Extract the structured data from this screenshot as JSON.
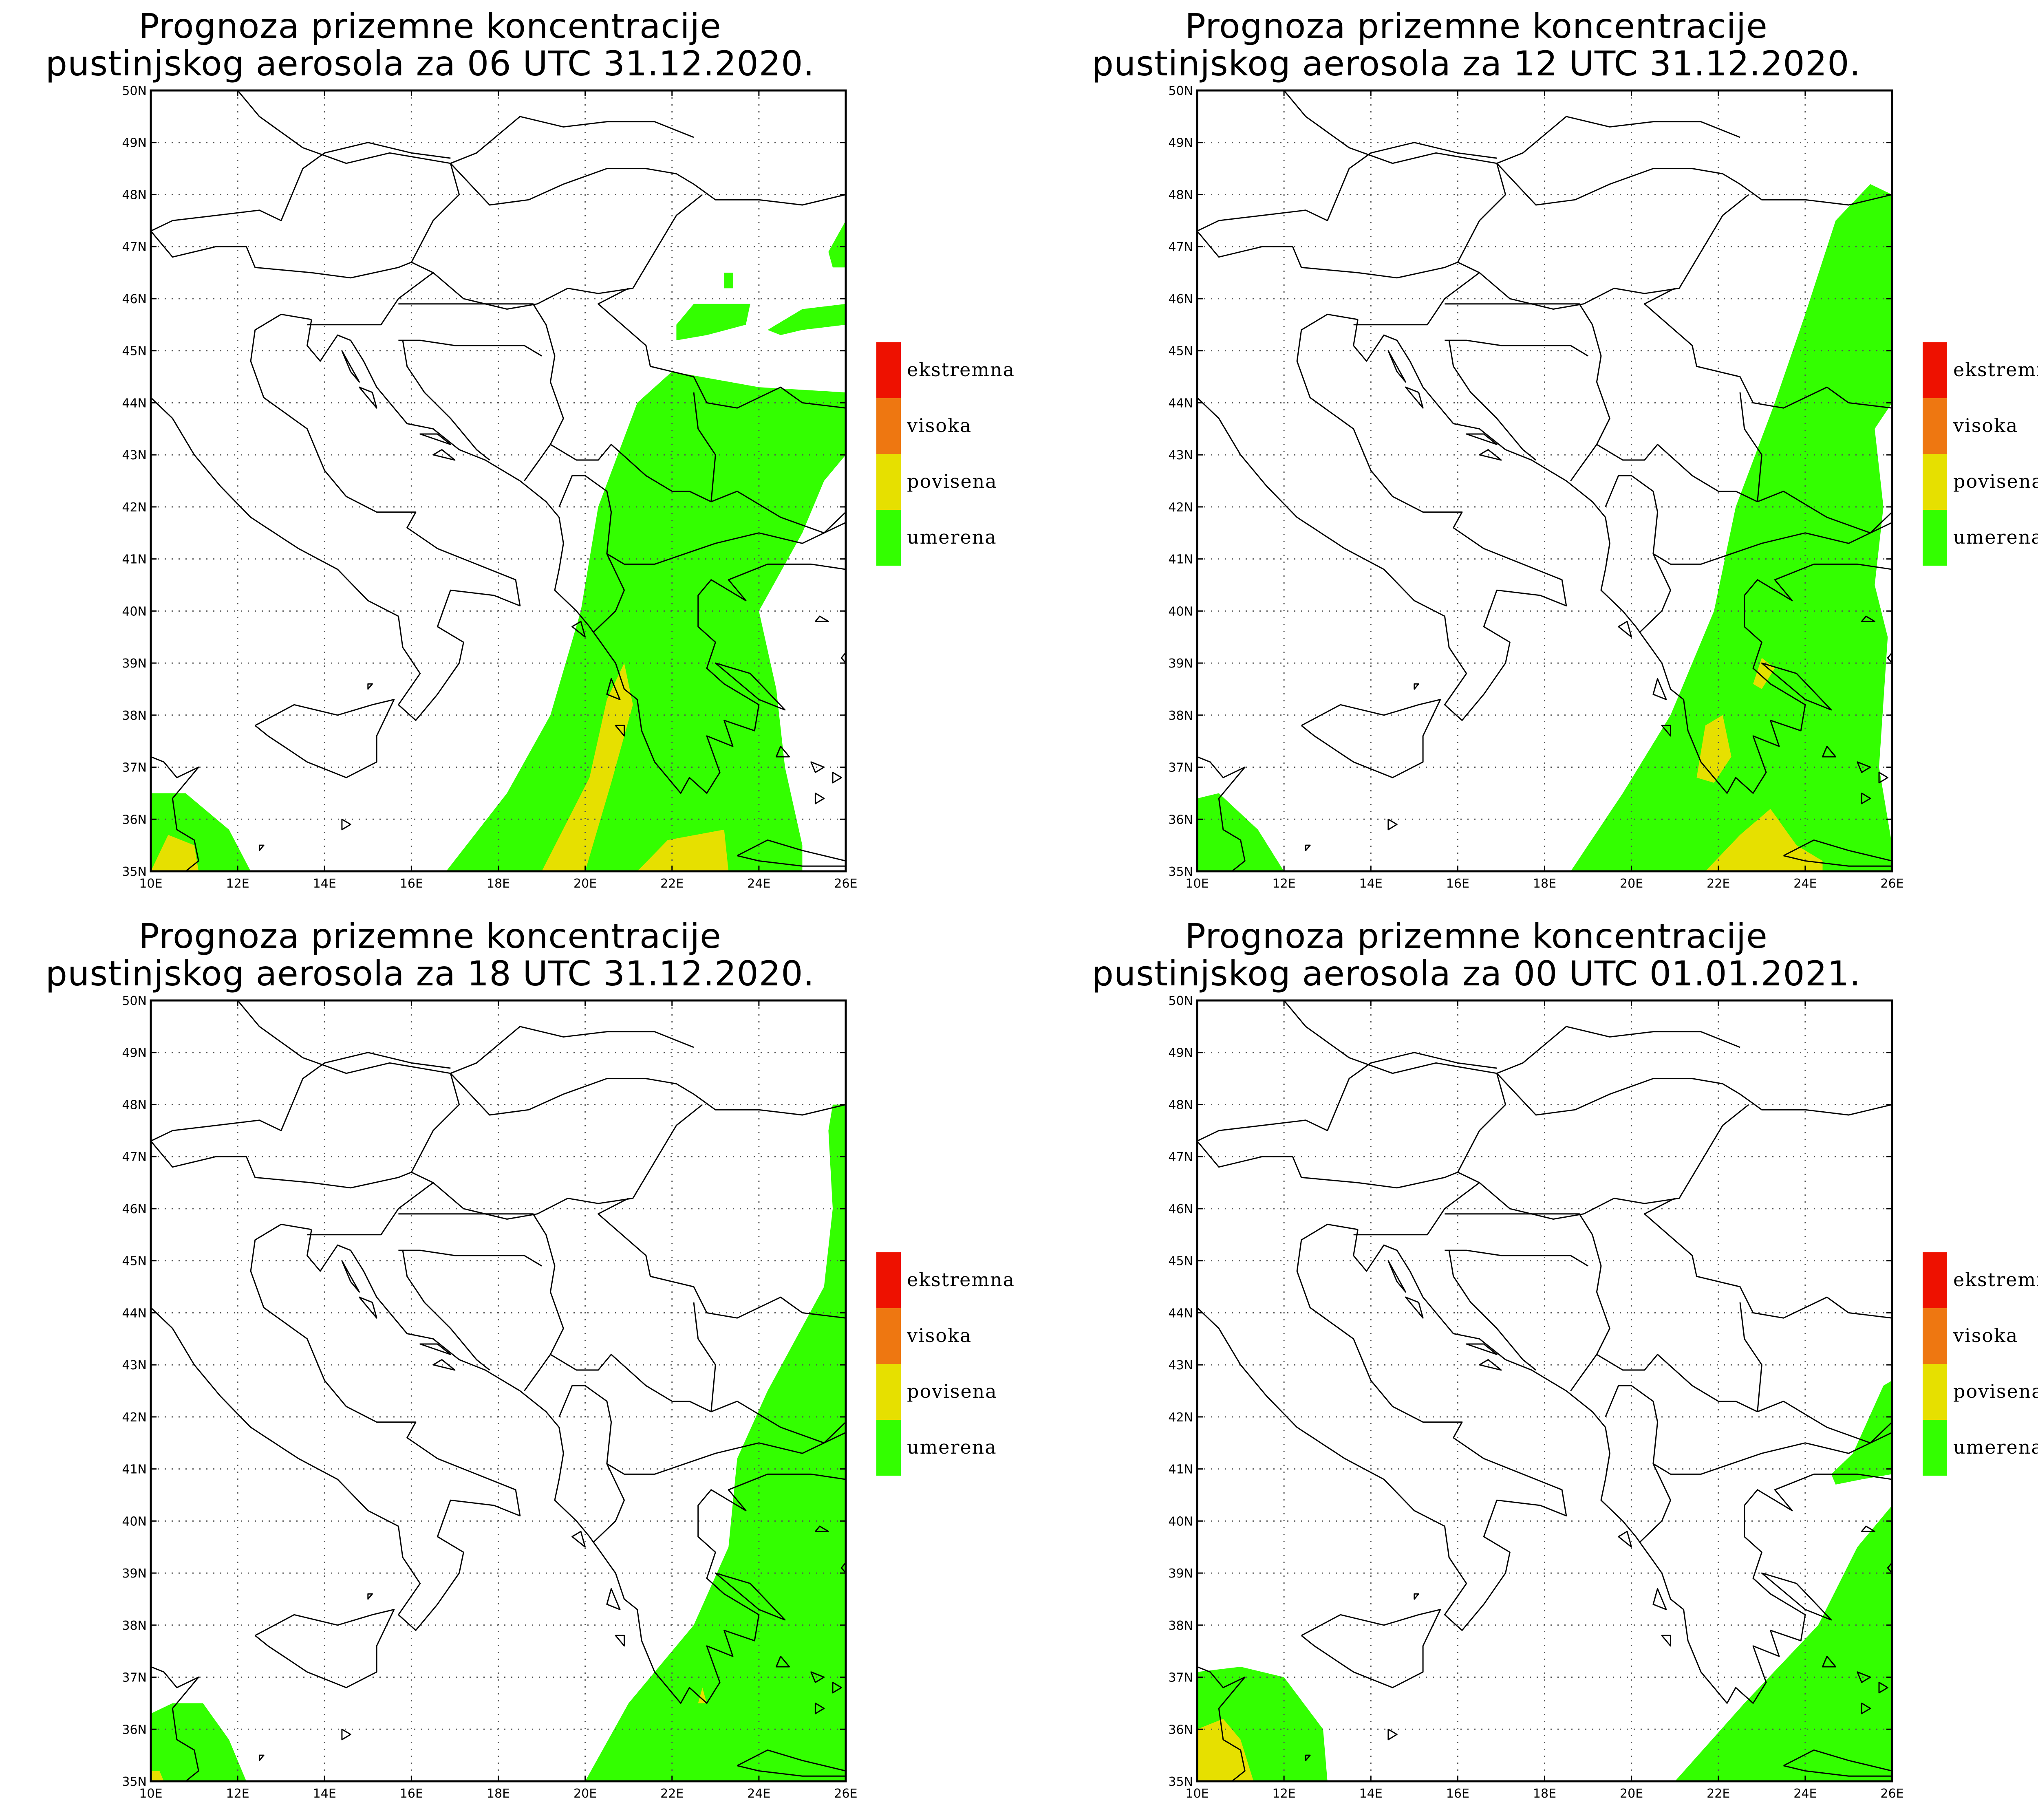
{
  "colors": {
    "ekstremna": "#ee1100",
    "visoka": "#ee7711",
    "povisena": "#e6e000",
    "umerena": "#33ff00",
    "border": "#000000",
    "grid": "#555555"
  },
  "legend": [
    {
      "key": "ekstremna",
      "label": "ekstremna"
    },
    {
      "key": "visoka",
      "label": "visoka"
    },
    {
      "key": "povisena",
      "label": "povisena"
    },
    {
      "key": "umerena",
      "label": "umerena"
    }
  ],
  "axes": {
    "lat_labels": [
      "50N",
      "49N",
      "48N",
      "47N",
      "46N",
      "45N",
      "44N",
      "43N",
      "42N",
      "41N",
      "40N",
      "39N",
      "38N",
      "37N",
      "36N",
      "35N"
    ],
    "lon_labels": [
      "10E",
      "12E",
      "14E",
      "16E",
      "18E",
      "20E",
      "22E",
      "24E",
      "26E"
    ],
    "lat_range": [
      35,
      50
    ],
    "lon_range": [
      10,
      26
    ]
  },
  "panels": [
    {
      "title_line1": "Prognoza prizemne koncentracije",
      "title_line2": "pustinjskog aerosola za 06 UTC 31.12.2020.",
      "areas": [
        {
          "level": "umerena",
          "pts": [
            [
              16.8,
              35
            ],
            [
              18.2,
              36.5
            ],
            [
              19.2,
              38
            ],
            [
              19.9,
              40
            ],
            [
              20.3,
              42
            ],
            [
              21.2,
              44
            ],
            [
              22,
              44.6
            ],
            [
              24,
              44.3
            ],
            [
              26,
              44.2
            ],
            [
              26,
              43
            ],
            [
              25.5,
              42.5
            ],
            [
              25,
              41.5
            ],
            [
              24,
              40
            ],
            [
              24.4,
              38.5
            ],
            [
              24.6,
              37
            ],
            [
              25,
              35.5
            ],
            [
              25,
              35
            ]
          ]
        },
        {
          "level": "umerena",
          "pts": [
            [
              10,
              35
            ],
            [
              10,
              36.5
            ],
            [
              10.8,
              36.5
            ],
            [
              11.8,
              35.8
            ],
            [
              12.3,
              35
            ]
          ]
        },
        {
          "level": "umerena",
          "pts": [
            [
              22.1,
              45.5
            ],
            [
              22.5,
              45.9
            ],
            [
              23.8,
              45.9
            ],
            [
              23.7,
              45.5
            ],
            [
              22.8,
              45.3
            ],
            [
              22.1,
              45.2
            ]
          ]
        },
        {
          "level": "umerena",
          "pts": [
            [
              24.2,
              45.4
            ],
            [
              25,
              45.8
            ],
            [
              26,
              45.9
            ],
            [
              26,
              45.5
            ],
            [
              25,
              45.4
            ],
            [
              24.5,
              45.3
            ]
          ]
        },
        {
          "level": "umerena",
          "pts": [
            [
              25.6,
              46.9
            ],
            [
              26,
              47.5
            ],
            [
              26,
              46.6
            ],
            [
              25.7,
              46.6
            ]
          ]
        },
        {
          "level": "umerena",
          "pts": [
            [
              23.2,
              46.5
            ],
            [
              23.4,
              46.5
            ],
            [
              23.4,
              46.2
            ],
            [
              23.2,
              46.2
            ]
          ]
        },
        {
          "level": "povisena",
          "pts": [
            [
              19,
              35
            ],
            [
              20.1,
              36.8
            ],
            [
              20.5,
              38.3
            ],
            [
              20.9,
              39
            ],
            [
              21.1,
              38.2
            ],
            [
              20.6,
              36.7
            ],
            [
              20,
              35
            ]
          ]
        },
        {
          "level": "povisena",
          "pts": [
            [
              21.2,
              35
            ],
            [
              21.9,
              35.6
            ],
            [
              23.2,
              35.8
            ],
            [
              23.3,
              35
            ]
          ]
        },
        {
          "level": "povisena",
          "pts": [
            [
              10,
              35
            ],
            [
              10.4,
              35.7
            ],
            [
              11,
              35.5
            ],
            [
              11.1,
              35
            ]
          ]
        }
      ]
    },
    {
      "title_line1": "Prognoza prizemne koncentracije",
      "title_line2": "pustinjskog aerosola za 12 UTC 31.12.2020.",
      "areas": [
        {
          "level": "umerena",
          "pts": [
            [
              18.6,
              35
            ],
            [
              19.8,
              36.5
            ],
            [
              20.9,
              38
            ],
            [
              21.9,
              40
            ],
            [
              22.4,
              42
            ],
            [
              23.3,
              44
            ],
            [
              24,
              45.7
            ],
            [
              24.7,
              47.5
            ],
            [
              25.5,
              48.2
            ],
            [
              26,
              48
            ],
            [
              26,
              44
            ],
            [
              25.6,
              43.5
            ],
            [
              25.8,
              42
            ],
            [
              25.6,
              40.5
            ],
            [
              25.9,
              39.5
            ],
            [
              25.7,
              37
            ],
            [
              26,
              35.5
            ],
            [
              26,
              35
            ]
          ]
        },
        {
          "level": "umerena",
          "pts": [
            [
              10,
              35
            ],
            [
              10,
              36.4
            ],
            [
              10.5,
              36.5
            ],
            [
              11.4,
              35.8
            ],
            [
              12,
              35
            ]
          ]
        },
        {
          "level": "povisena",
          "pts": [
            [
              21.7,
              35
            ],
            [
              22.5,
              35.7
            ],
            [
              23.2,
              36.2
            ],
            [
              23.8,
              35.5
            ],
            [
              24.4,
              35.2
            ],
            [
              24.4,
              35
            ]
          ]
        },
        {
          "level": "povisena",
          "pts": [
            [
              21.5,
              36.8
            ],
            [
              21.7,
              37.8
            ],
            [
              22.1,
              38
            ],
            [
              22.3,
              37.2
            ],
            [
              21.9,
              36.7
            ]
          ]
        },
        {
          "level": "povisena",
          "pts": [
            [
              22.8,
              38.6
            ],
            [
              23,
              39.1
            ],
            [
              23.3,
              38.9
            ],
            [
              23,
              38.5
            ]
          ]
        }
      ]
    },
    {
      "title_line1": "Prognoza prizemne koncentracije",
      "title_line2": "pustinjskog aerosola za 18 UTC 31.12.2020.",
      "areas": [
        {
          "level": "umerena",
          "pts": [
            [
              20,
              35
            ],
            [
              21,
              36.5
            ],
            [
              22.5,
              38
            ],
            [
              23.3,
              39.5
            ],
            [
              23.5,
              41.2
            ],
            [
              24.2,
              42.5
            ],
            [
              25.5,
              44.5
            ],
            [
              25.7,
              46
            ],
            [
              25.6,
              47.5
            ],
            [
              25.7,
              48
            ],
            [
              26,
              48
            ],
            [
              26,
              35
            ]
          ]
        },
        {
          "level": "umerena",
          "pts": [
            [
              10,
              35
            ],
            [
              10,
              36.3
            ],
            [
              10.5,
              36.5
            ],
            [
              11.2,
              36.5
            ],
            [
              11.8,
              35.8
            ],
            [
              12.2,
              35
            ]
          ]
        },
        {
          "level": "povisena",
          "pts": [
            [
              10,
              35
            ],
            [
              10,
              35.2
            ],
            [
              10.2,
              35.2
            ],
            [
              10.3,
              35
            ]
          ]
        },
        {
          "level": "povisena",
          "pts": [
            [
              22.6,
              36.5
            ],
            [
              22.7,
              36.8
            ],
            [
              22.8,
              36.5
            ]
          ]
        }
      ]
    },
    {
      "title_line1": "Prognoza prizemne koncentracije",
      "title_line2": "pustinjskog aerosola za 00 UTC 01.01.2021.",
      "areas": [
        {
          "level": "umerena",
          "pts": [
            [
              21,
              35
            ],
            [
              22.6,
              36.5
            ],
            [
              24.3,
              38
            ],
            [
              25.2,
              39.5
            ],
            [
              26,
              40.3
            ],
            [
              26,
              35
            ]
          ]
        },
        {
          "level": "umerena",
          "pts": [
            [
              24.6,
              40.9
            ],
            [
              25.1,
              41.3
            ],
            [
              25.8,
              42.6
            ],
            [
              26,
              42.7
            ],
            [
              26,
              40.9
            ],
            [
              25.3,
              40.8
            ],
            [
              24.7,
              40.7
            ]
          ]
        },
        {
          "level": "umerena",
          "pts": [
            [
              10,
              35
            ],
            [
              10,
              37.1
            ],
            [
              11,
              37.2
            ],
            [
              12,
              37
            ],
            [
              12.9,
              36
            ],
            [
              13,
              35
            ]
          ]
        },
        {
          "level": "povisena",
          "pts": [
            [
              10,
              35
            ],
            [
              10,
              36
            ],
            [
              10.6,
              36.2
            ],
            [
              11,
              35.8
            ],
            [
              11.3,
              35
            ]
          ]
        }
      ]
    }
  ]
}
